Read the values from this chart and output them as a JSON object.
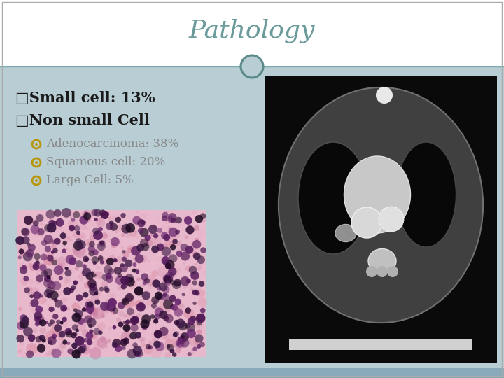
{
  "title": "Pathology",
  "title_color": "#6a9a9a",
  "title_fontsize": 26,
  "slide_bg": "#b8cdd4",
  "header_bg": "#ffffff",
  "header_line_color": "#7aaab0",
  "bullet1_text": "□Small cell: 13%",
  "bullet2_text": "□Non small Cell",
  "sub_bullets": [
    "Adenocarcinoma: 38%",
    "Squamous cell: 20%",
    "Large Cell: 5%"
  ],
  "bullet_color": "#1a1a1a",
  "sub_bullet_color": "#888888",
  "sub_bullet_marker_color": "#b8960c",
  "circle_color": "#5a8a8a",
  "circle_fill": "#b8cdd4",
  "footer_color": "#88aabb"
}
